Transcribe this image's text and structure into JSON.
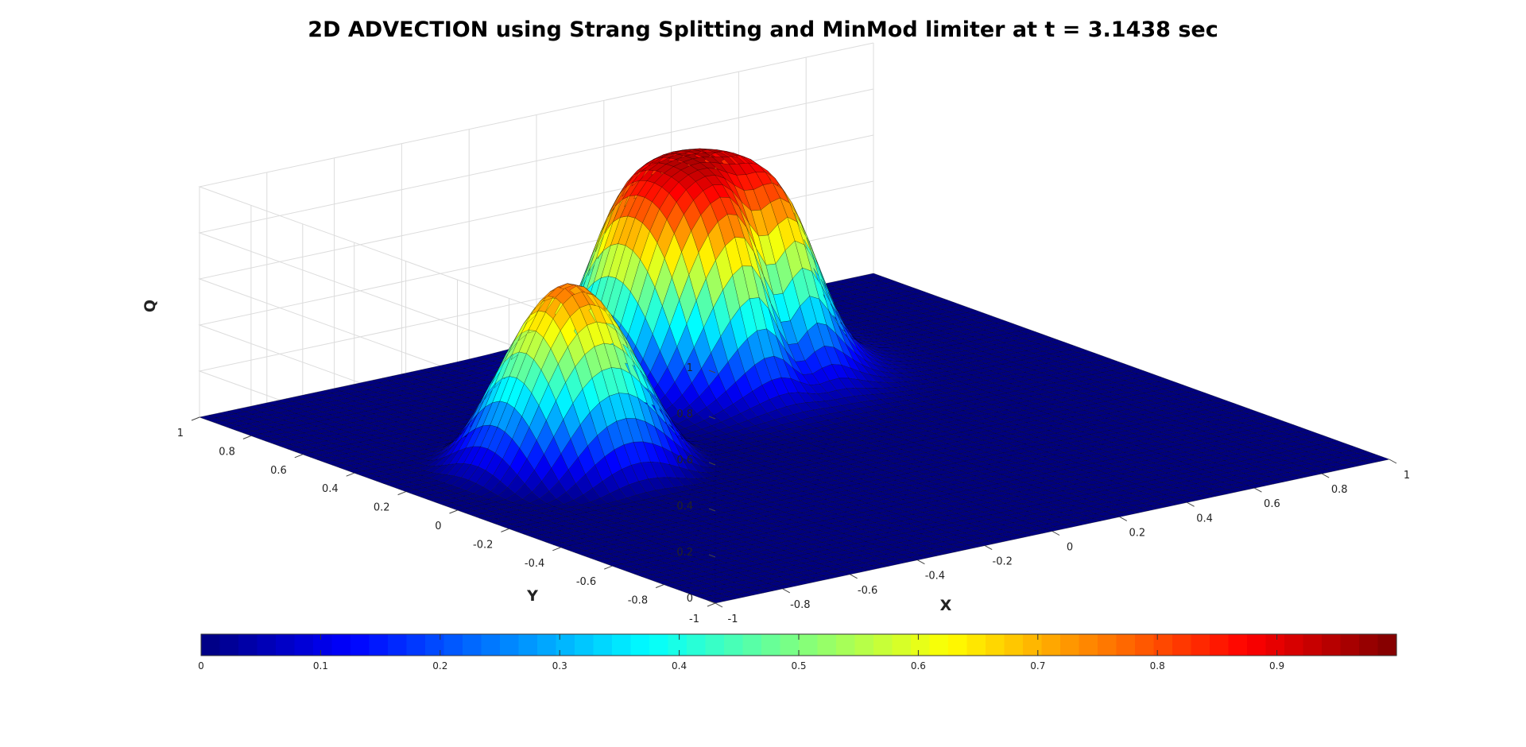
{
  "chart_data": {
    "type": "surface",
    "title": "2D ADVECTION using Strang Splitting and MinMod limiter at t = 3.1438 sec",
    "xlabel": "X",
    "ylabel": "Y",
    "zlabel": "Q",
    "xlim": [
      -1,
      1
    ],
    "ylim": [
      -1,
      1
    ],
    "zlim": [
      0,
      1
    ],
    "x_ticks": [
      "-1",
      "-0.8",
      "-0.6",
      "-0.4",
      "-0.2",
      "0",
      "0.2",
      "0.4",
      "0.6",
      "0.8",
      "1"
    ],
    "y_ticks": [
      "-1",
      "-0.8",
      "-0.6",
      "-0.4",
      "-0.2",
      "0",
      "0.2",
      "0.4",
      "0.6",
      "0.8",
      "1"
    ],
    "z_ticks": [
      "0",
      "0.2",
      "0.4",
      "0.6",
      "0.8",
      "1"
    ],
    "colorbar": {
      "colormap": "jet",
      "range": [
        0,
        1
      ],
      "ticks": [
        "0",
        "0.1",
        "0.2",
        "0.3",
        "0.4",
        "0.5",
        "0.6",
        "0.7",
        "0.8",
        "0.9"
      ],
      "placement": "bottom"
    },
    "grid": true,
    "features": [
      {
        "shape": "smooth hump",
        "center_x": -0.55,
        "center_y": 0.15,
        "peak_q": 0.78
      },
      {
        "shape": "flat-topped plateau with notch",
        "center_x": 0.15,
        "center_y": 0.55,
        "peak_q": 0.97
      }
    ]
  }
}
